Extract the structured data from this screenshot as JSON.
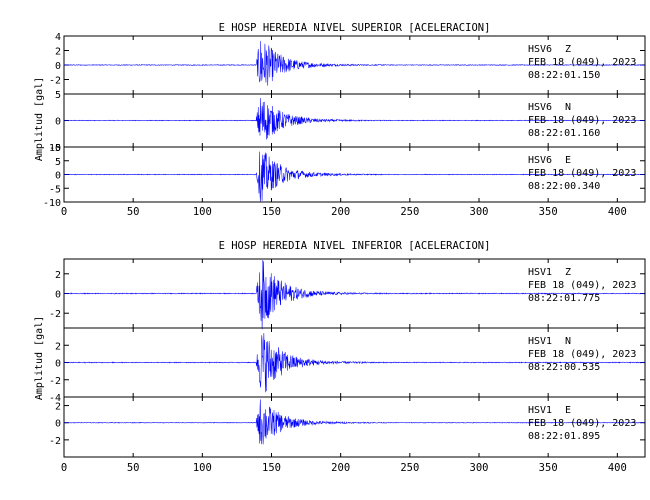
{
  "chart_data": [
    {
      "type": "line",
      "title": "E HOSP HEREDIA NIVEL SUPERIOR [ACELERACION]",
      "ylabel": "Amplitud [gal]",
      "xlabel": "",
      "xlim": [
        0,
        420
      ],
      "x_ticks": [
        "0",
        "50",
        "100",
        "150",
        "200",
        "250",
        "300",
        "350",
        "400"
      ],
      "grid": false,
      "line_color": "#0000ff",
      "panels": [
        {
          "station": "HSV6",
          "component": "Z",
          "date": "FEB 18 (049), 2023",
          "time": "08:22:01.150",
          "ylim": [
            -4,
            4
          ],
          "y_ticks": [
            "4",
            "2",
            "0",
            "-2"
          ],
          "peak_amplitude": 4,
          "onset_s": 139,
          "peak_time_s": 142
        },
        {
          "station": "HSV6",
          "component": "N",
          "date": "FEB 18 (049), 2023",
          "time": "08:22:01.160",
          "ylim": [
            -5,
            5
          ],
          "y_ticks": [
            "5",
            "0",
            "-5"
          ],
          "peak_amplitude": 5,
          "onset_s": 139,
          "peak_time_s": 142
        },
        {
          "station": "HSV6",
          "component": "E",
          "date": "FEB 18 (049), 2023",
          "time": "08:22:00.340",
          "ylim": [
            -10,
            10
          ],
          "y_ticks": [
            "10",
            "5",
            "0",
            "-5",
            "-10"
          ],
          "peak_amplitude": 10,
          "onset_s": 139,
          "peak_time_s": 142
        }
      ]
    },
    {
      "type": "line",
      "title": "E HOSP HEREDIA NIVEL INFERIOR [ACELERACION]",
      "ylabel": "Amplitud [gal]",
      "xlabel": "",
      "xlim": [
        0,
        420
      ],
      "x_ticks": [
        "0",
        "50",
        "100",
        "150",
        "200",
        "250",
        "300",
        "350",
        "400"
      ],
      "grid": false,
      "line_color": "#0000ff",
      "panels": [
        {
          "station": "HSV1",
          "component": "Z",
          "date": "FEB 18 (049), 2023",
          "time": "08:22:01.775",
          "ylim": [
            -3.5,
            3.5
          ],
          "y_ticks": [
            "2",
            "0",
            "-2"
          ],
          "peak_amplitude": 3.5,
          "onset_s": 139,
          "peak_time_s": 143
        },
        {
          "station": "HSV1",
          "component": "N",
          "date": "FEB 18 (049), 2023",
          "time": "08:22:00.535",
          "ylim": [
            -4,
            4
          ],
          "y_ticks": [
            "2",
            "0",
            "-2",
            "-4"
          ],
          "peak_amplitude": 4,
          "onset_s": 139,
          "peak_time_s": 143
        },
        {
          "station": "HSV1",
          "component": "E",
          "date": "FEB 18 (049), 2023",
          "time": "08:22:01.895",
          "ylim": [
            -4,
            3
          ],
          "y_ticks": [
            "2",
            "0",
            "-2"
          ],
          "peak_amplitude": 3,
          "onset_s": 139,
          "peak_time_s": 142
        }
      ]
    }
  ]
}
